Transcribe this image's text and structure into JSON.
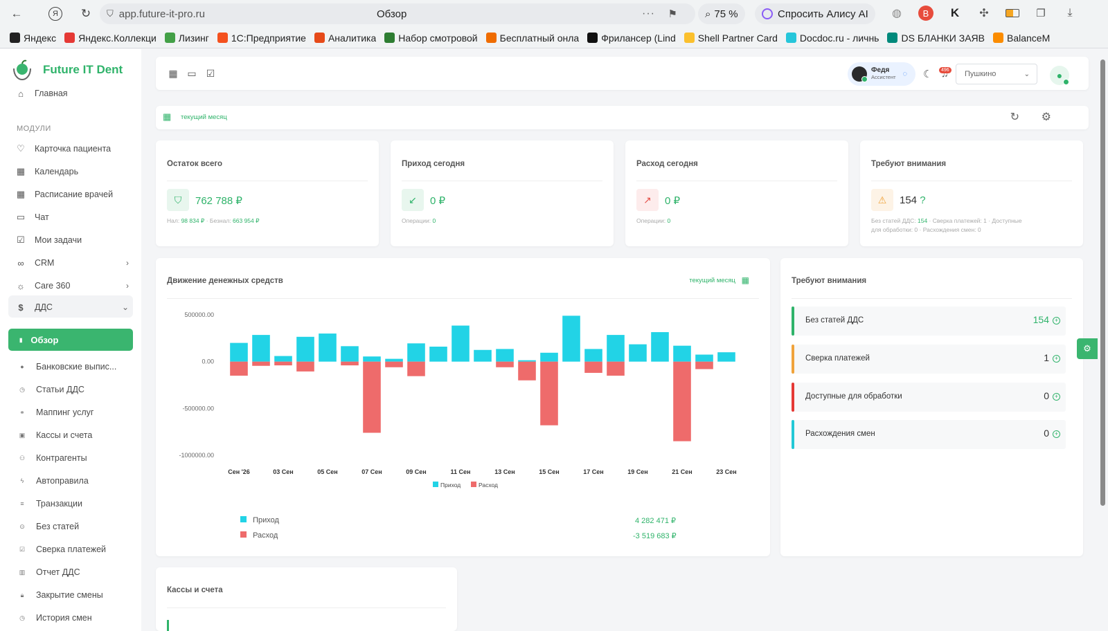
{
  "browser": {
    "url": "app.future-it-pro.ru",
    "page_title": "Обзор",
    "zoom": "75 %",
    "alice_label": "Спросить Алису AI"
  },
  "bookmarks": [
    {
      "label": "Яндекс",
      "color": "#222222"
    },
    {
      "label": "Яндекс.Коллекци",
      "color": "#e53935"
    },
    {
      "label": "Лизинг",
      "color": "#43a047"
    },
    {
      "label": "1С:Предприятие",
      "color": "#f4511e"
    },
    {
      "label": "Аналитика",
      "color": "#e64a19"
    },
    {
      "label": "Набор смотровой",
      "color": "#2e7d32"
    },
    {
      "label": "Бесплатный онла",
      "color": "#ef6c00"
    },
    {
      "label": "Фрилансер (Lind",
      "color": "#111111"
    },
    {
      "label": "Shell Partner Card",
      "color": "#fbc02d"
    },
    {
      "label": "Docdoc.ru - личнь",
      "color": "#26c6da"
    },
    {
      "label": "DS БЛАНКИ ЗАЯВ",
      "color": "#00897b"
    },
    {
      "label": "BalanceM",
      "color": "#fb8c00"
    }
  ],
  "logo": {
    "text": "Future IT Dent"
  },
  "sidebar": {
    "home": "Главная",
    "section": "МОДУЛИ",
    "items": [
      {
        "label": "Карточка пациента",
        "icon": "♡"
      },
      {
        "label": "Календарь",
        "icon": "▦"
      },
      {
        "label": "Расписание врачей",
        "icon": "▦"
      },
      {
        "label": "Чат",
        "icon": "▭"
      },
      {
        "label": "Мои задачи",
        "icon": "☑"
      },
      {
        "label": "CRM",
        "icon": "∞"
      },
      {
        "label": "Care 360",
        "icon": "☼"
      },
      {
        "label": "ДДС",
        "icon": "$"
      }
    ],
    "active": "Обзор",
    "sub_items": [
      "Банковские выпис...",
      "Статьи ДДС",
      "Маппинг услуг",
      "Кассы и счета",
      "Контрагенты",
      "Автоправила",
      "Транзакции",
      "Без статей",
      "Сверка платежей",
      "Отчет ДДС",
      "Закрытие смены",
      "История смен"
    ]
  },
  "header": {
    "assistant_name": "Федя",
    "assistant_role": "Ассистент",
    "notifications_badge": "496",
    "branch": "Пушкино"
  },
  "period": {
    "label": "текущий месяц"
  },
  "stats": [
    {
      "title": "Остаток всего",
      "value": "762 788 ₽",
      "sub_parts": [
        "Нал: ",
        "98 834 ₽",
        " · Безнал: ",
        "663 954 ₽"
      ]
    },
    {
      "title": "Приход сегодня",
      "value": "0 ₽",
      "sub_parts": [
        "Операции: ",
        "0"
      ]
    },
    {
      "title": "Расход сегодня",
      "value": "0 ₽",
      "sub_parts": [
        "Операции: ",
        "0"
      ]
    },
    {
      "title": "Требуют внимания",
      "value": "154",
      "value_suffix": "?",
      "sub_line1": [
        "Без статей ДДС: ",
        "154",
        " · Сверка платежей: 1 · Доступные"
      ],
      "sub_line2": "для обработки: 0 · Расхождения смен: 0"
    }
  ],
  "cashflow": {
    "title": "Движение денежных средств",
    "period": "текущий месяц",
    "legend_income": "Приход",
    "legend_expense": "Расход",
    "total_income_label": "Приход",
    "total_income": "4 282 471 ₽",
    "total_expense_label": "Расход",
    "total_expense": "-3 519 683 ₽"
  },
  "chart_data": {
    "type": "bar",
    "y_ticks": [
      "500000.00",
      "0.00",
      "-500000.00",
      "-1000000.00"
    ],
    "x_tick_labels": [
      "Сен '26",
      "03 Сен",
      "05 Сен",
      "07 Сен",
      "09 Сен",
      "11 Сен",
      "13 Сен",
      "15 Сен",
      "17 Сен",
      "19 Сен",
      "21 Сен",
      "23 Сен"
    ],
    "ylim": [
      -1000000,
      500000
    ],
    "categories": [
      "01",
      "02",
      "03",
      "04",
      "05",
      "06",
      "07",
      "08",
      "09",
      "10",
      "11",
      "12",
      "13",
      "14",
      "15",
      "16",
      "17",
      "18",
      "19",
      "20",
      "21",
      "22",
      "23"
    ],
    "series": [
      {
        "name": "Приход",
        "color": "#22d3e6",
        "values": [
          200000,
          285000,
          60000,
          265000,
          300000,
          165000,
          55000,
          30000,
          195000,
          160000,
          385000,
          125000,
          135000,
          15000,
          95000,
          490000,
          135000,
          285000,
          185000,
          315000,
          170000,
          75000,
          100000
        ]
      },
      {
        "name": "Расход",
        "color": "#ee6b6b",
        "values": [
          -150000,
          -45000,
          -40000,
          -105000,
          0,
          -40000,
          -760000,
          -60000,
          -155000,
          0,
          0,
          0,
          -60000,
          -200000,
          -680000,
          0,
          -120000,
          -150000,
          0,
          0,
          -850000,
          -80000,
          0
        ]
      }
    ],
    "grid": false,
    "legend": "bottom"
  },
  "attention": {
    "title": "Требуют внимания",
    "rows": [
      {
        "label": "Без статей ДДС",
        "value": "154",
        "color": "#2fb36a",
        "value_color": "#2fb36a"
      },
      {
        "label": "Сверка платежей",
        "value": "1",
        "color": "#f0a33b",
        "value_color": "#333333"
      },
      {
        "label": "Доступные для обработки",
        "value": "0",
        "color": "#e53935",
        "value_color": "#333333"
      },
      {
        "label": "Расхождения смен",
        "value": "0",
        "color": "#22c8d6",
        "value_color": "#333333"
      }
    ]
  },
  "accounts": {
    "title": "Кассы и счета"
  }
}
